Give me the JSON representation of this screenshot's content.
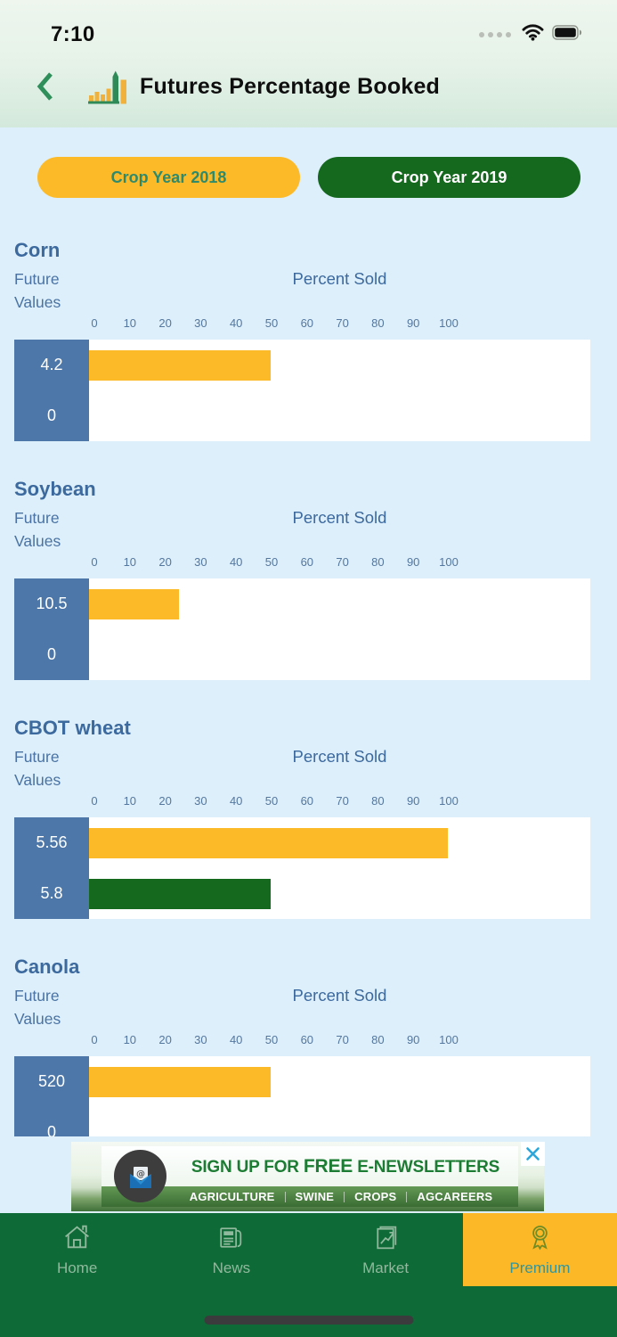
{
  "status_bar": {
    "time": "7:10"
  },
  "header": {
    "title": "Futures Percentage Booked"
  },
  "crop_year_buttons": {
    "year_2018": "Crop Year 2018",
    "year_2019": "Crop Year 2019"
  },
  "chart_common": {
    "value_axis_label": "Future Values",
    "percent_axis_label": "Percent Sold",
    "ticks": [
      0,
      10,
      20,
      30,
      40,
      50,
      60,
      70,
      80,
      90,
      100
    ]
  },
  "sections": [
    {
      "title": "Corn",
      "clipped": false,
      "rows": [
        {
          "crop_year": "Crop Year 2018",
          "future_value": "4.2",
          "percent_sold": 50
        },
        {
          "crop_year": "Crop Year 2019",
          "future_value": "0",
          "percent_sold": 0
        }
      ]
    },
    {
      "title": "Soybean",
      "clipped": false,
      "rows": [
        {
          "crop_year": "Crop Year 2018",
          "future_value": "10.5",
          "percent_sold": 24
        },
        {
          "crop_year": "Crop Year 2019",
          "future_value": "0",
          "percent_sold": 0
        }
      ]
    },
    {
      "title": "CBOT wheat",
      "clipped": false,
      "rows": [
        {
          "crop_year": "Crop Year 2018",
          "future_value": "5.56",
          "percent_sold": 100
        },
        {
          "crop_year": "Crop Year 2019",
          "future_value": "5.8",
          "percent_sold": 50
        }
      ]
    },
    {
      "title": "Canola",
      "clipped": true,
      "rows": [
        {
          "crop_year": "Crop Year 2018",
          "future_value": "520",
          "percent_sold": 50
        },
        {
          "crop_year": "Crop Year 2019",
          "future_value": "0",
          "percent_sold": 0
        }
      ]
    }
  ],
  "chart_data": [
    {
      "type": "bar",
      "title": "Corn",
      "xlabel": "Percent Sold",
      "xlim": [
        0,
        100
      ],
      "series": [
        {
          "name": "Crop Year 2018",
          "future_value": 4.2,
          "percent_sold": 50
        },
        {
          "name": "Crop Year 2019",
          "future_value": 0,
          "percent_sold": 0
        }
      ]
    },
    {
      "type": "bar",
      "title": "Soybean",
      "xlabel": "Percent Sold",
      "xlim": [
        0,
        100
      ],
      "series": [
        {
          "name": "Crop Year 2018",
          "future_value": 10.5,
          "percent_sold": 24
        },
        {
          "name": "Crop Year 2019",
          "future_value": 0,
          "percent_sold": 0
        }
      ]
    },
    {
      "type": "bar",
      "title": "CBOT wheat",
      "xlabel": "Percent Sold",
      "xlim": [
        0,
        100
      ],
      "series": [
        {
          "name": "Crop Year 2018",
          "future_value": 5.56,
          "percent_sold": 100
        },
        {
          "name": "Crop Year 2019",
          "future_value": 5.8,
          "percent_sold": 50
        }
      ]
    },
    {
      "type": "bar",
      "title": "Canola",
      "xlabel": "Percent Sold",
      "xlim": [
        0,
        100
      ],
      "series": [
        {
          "name": "Crop Year 2018",
          "future_value": 520,
          "percent_sold": 50
        },
        {
          "name": "Crop Year 2019",
          "future_value": 0,
          "percent_sold": 0
        }
      ]
    }
  ],
  "ad_banner": {
    "headline_parts": [
      "SIGN UP FOR ",
      "FREE",
      " E-NEWSLETTERS"
    ],
    "categories": [
      "AGRICULTURE",
      "SWINE",
      "CROPS",
      "AGCAREERS"
    ]
  },
  "tab_bar": {
    "items": [
      {
        "label": "Home",
        "icon": "home-icon",
        "active": false
      },
      {
        "label": "News",
        "icon": "news-icon",
        "active": false
      },
      {
        "label": "Market",
        "icon": "market-icon",
        "active": false
      },
      {
        "label": "Premium",
        "icon": "award-icon",
        "active": true
      }
    ]
  },
  "colors": {
    "year_2018_bar": "#fcba28",
    "year_2019_bar": "#15691f",
    "value_box": "#4d77a8",
    "nav_green": "#0e6a36",
    "premium_yellow": "#fcb826",
    "premium_text": "#2f96a0",
    "title_blue": "#3c699e"
  }
}
